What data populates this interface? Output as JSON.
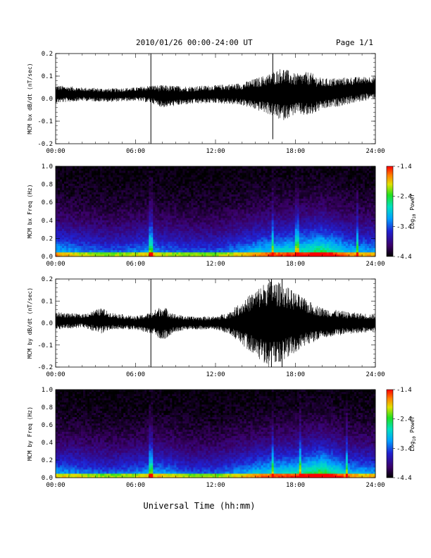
{
  "header": {
    "title": "2010/01/26  00:00-24:00 UT",
    "page": "Page 1/1"
  },
  "xaxis_label": "Universal Time (hh:mm)",
  "colorbar_label_main": "Log",
  "colorbar_label_sub": "10",
  "colorbar_label_tail": " Power",
  "colors": {
    "ink": "#000000",
    "background": "#ffffff"
  },
  "chart_data": [
    {
      "type": "line",
      "id": "bx-dbdt",
      "ylabel": "MCM bx dB/dt (nT/sec)",
      "x_range_hours": [
        0,
        24
      ],
      "xticks": [
        "00:00",
        "06:00",
        "12:00",
        "18:00",
        "24:00"
      ],
      "ylim": [
        -0.2,
        0.2
      ],
      "yticks": [
        "-0.2",
        "-0.1",
        "0.0",
        "0.1",
        "0.2"
      ],
      "envelope": {
        "hours": [
          0,
          2,
          4,
          6,
          7.2,
          8,
          10,
          12,
          14,
          15,
          16,
          17,
          18,
          19,
          20,
          22,
          24
        ],
        "center": [
          0.02,
          0.02,
          0.015,
          0.02,
          0.02,
          0.01,
          0.015,
          0.02,
          0.02,
          0.02,
          0.02,
          0.02,
          0.02,
          0.02,
          0.02,
          0.035,
          0.05
        ],
        "amplitude": [
          0.04,
          0.03,
          0.03,
          0.03,
          0.04,
          0.05,
          0.04,
          0.04,
          0.05,
          0.07,
          0.09,
          0.12,
          0.09,
          0.1,
          0.07,
          0.06,
          0.05
        ]
      },
      "spikes": [
        {
          "hour": 7.15,
          "low": -0.2,
          "high": 0.2
        },
        {
          "hour": 16.3,
          "low": -0.18,
          "high": 0.2
        }
      ]
    },
    {
      "type": "heatmap",
      "id": "bx-freq",
      "ylabel": "MCM bx Freq (Hz)",
      "x_range_hours": [
        0,
        24
      ],
      "xticks": [
        "00:00",
        "06:00",
        "12:00",
        "18:00",
        "24:00"
      ],
      "ylim": [
        0,
        1.0
      ],
      "yticks": [
        "0.0",
        "0.2",
        "0.4",
        "0.6",
        "0.8",
        "1.0"
      ],
      "colorbar": {
        "min": -4.4,
        "max": -1.4,
        "ticks": [
          "-1.4",
          "-2.4",
          "-3.4",
          "-4.4"
        ]
      },
      "activity": {
        "hours": [
          0,
          2,
          4,
          6,
          7.2,
          8,
          10,
          12,
          14,
          16,
          18,
          20,
          22,
          24
        ],
        "level": [
          0.55,
          0.45,
          0.4,
          0.45,
          0.5,
          0.45,
          0.4,
          0.4,
          0.5,
          0.6,
          0.65,
          0.75,
          0.55,
          0.5
        ]
      },
      "bright_lines_hours": [
        7.15,
        16.3,
        18.1,
        22.7
      ]
    },
    {
      "type": "line",
      "id": "by-dbdt",
      "ylabel": "MCM by dB/dt (nT/sec)",
      "x_range_hours": [
        0,
        24
      ],
      "xticks": [
        "00:00",
        "06:00",
        "12:00",
        "18:00",
        "24:00"
      ],
      "ylim": [
        -0.2,
        0.2
      ],
      "yticks": [
        "-0.2",
        "-0.1",
        "0.0",
        "0.1",
        "0.2"
      ],
      "envelope": {
        "hours": [
          0,
          2,
          3.5,
          4,
          6,
          7.2,
          8,
          9,
          10,
          12,
          13,
          14,
          15,
          16,
          17,
          18,
          19,
          20,
          22,
          24
        ],
        "center": [
          0.01,
          0.01,
          0.01,
          0.01,
          0.0,
          0.0,
          0.0,
          0.0,
          0.0,
          0.0,
          0.0,
          0.0,
          0.0,
          0.0,
          0.0,
          0.0,
          0.0,
          0.0,
          0.0,
          0.0
        ],
        "amplitude": [
          0.04,
          0.03,
          0.06,
          0.04,
          0.03,
          0.05,
          0.08,
          0.04,
          0.03,
          0.03,
          0.05,
          0.1,
          0.15,
          0.2,
          0.18,
          0.14,
          0.1,
          0.07,
          0.05,
          0.04
        ]
      },
      "spikes": [
        {
          "hour": 7.15,
          "low": -0.2,
          "high": 0.2
        },
        {
          "hour": 16.2,
          "low": -0.2,
          "high": 0.2
        },
        {
          "hour": 17.0,
          "low": -0.2,
          "high": 0.2
        }
      ]
    },
    {
      "type": "heatmap",
      "id": "by-freq",
      "ylabel": "MCM by Freq (Hz)",
      "x_range_hours": [
        0,
        24
      ],
      "xticks": [
        "00:00",
        "06:00",
        "12:00",
        "18:00",
        "24:00"
      ],
      "ylim": [
        0,
        1.0
      ],
      "yticks": [
        "0.0",
        "0.2",
        "0.4",
        "0.6",
        "0.8",
        "1.0"
      ],
      "colorbar": {
        "min": -4.4,
        "max": -1.4,
        "ticks": [
          "-1.4",
          "-2.4",
          "-3.4",
          "-4.4"
        ]
      },
      "activity": {
        "hours": [
          0,
          2,
          4,
          6,
          7.2,
          8,
          10,
          12,
          14,
          16,
          18,
          20,
          22,
          24
        ],
        "level": [
          0.5,
          0.45,
          0.4,
          0.45,
          0.5,
          0.5,
          0.4,
          0.4,
          0.5,
          0.6,
          0.65,
          0.8,
          0.55,
          0.5
        ]
      },
      "bright_lines_hours": [
        7.15,
        16.3,
        18.3,
        21.8
      ]
    }
  ]
}
